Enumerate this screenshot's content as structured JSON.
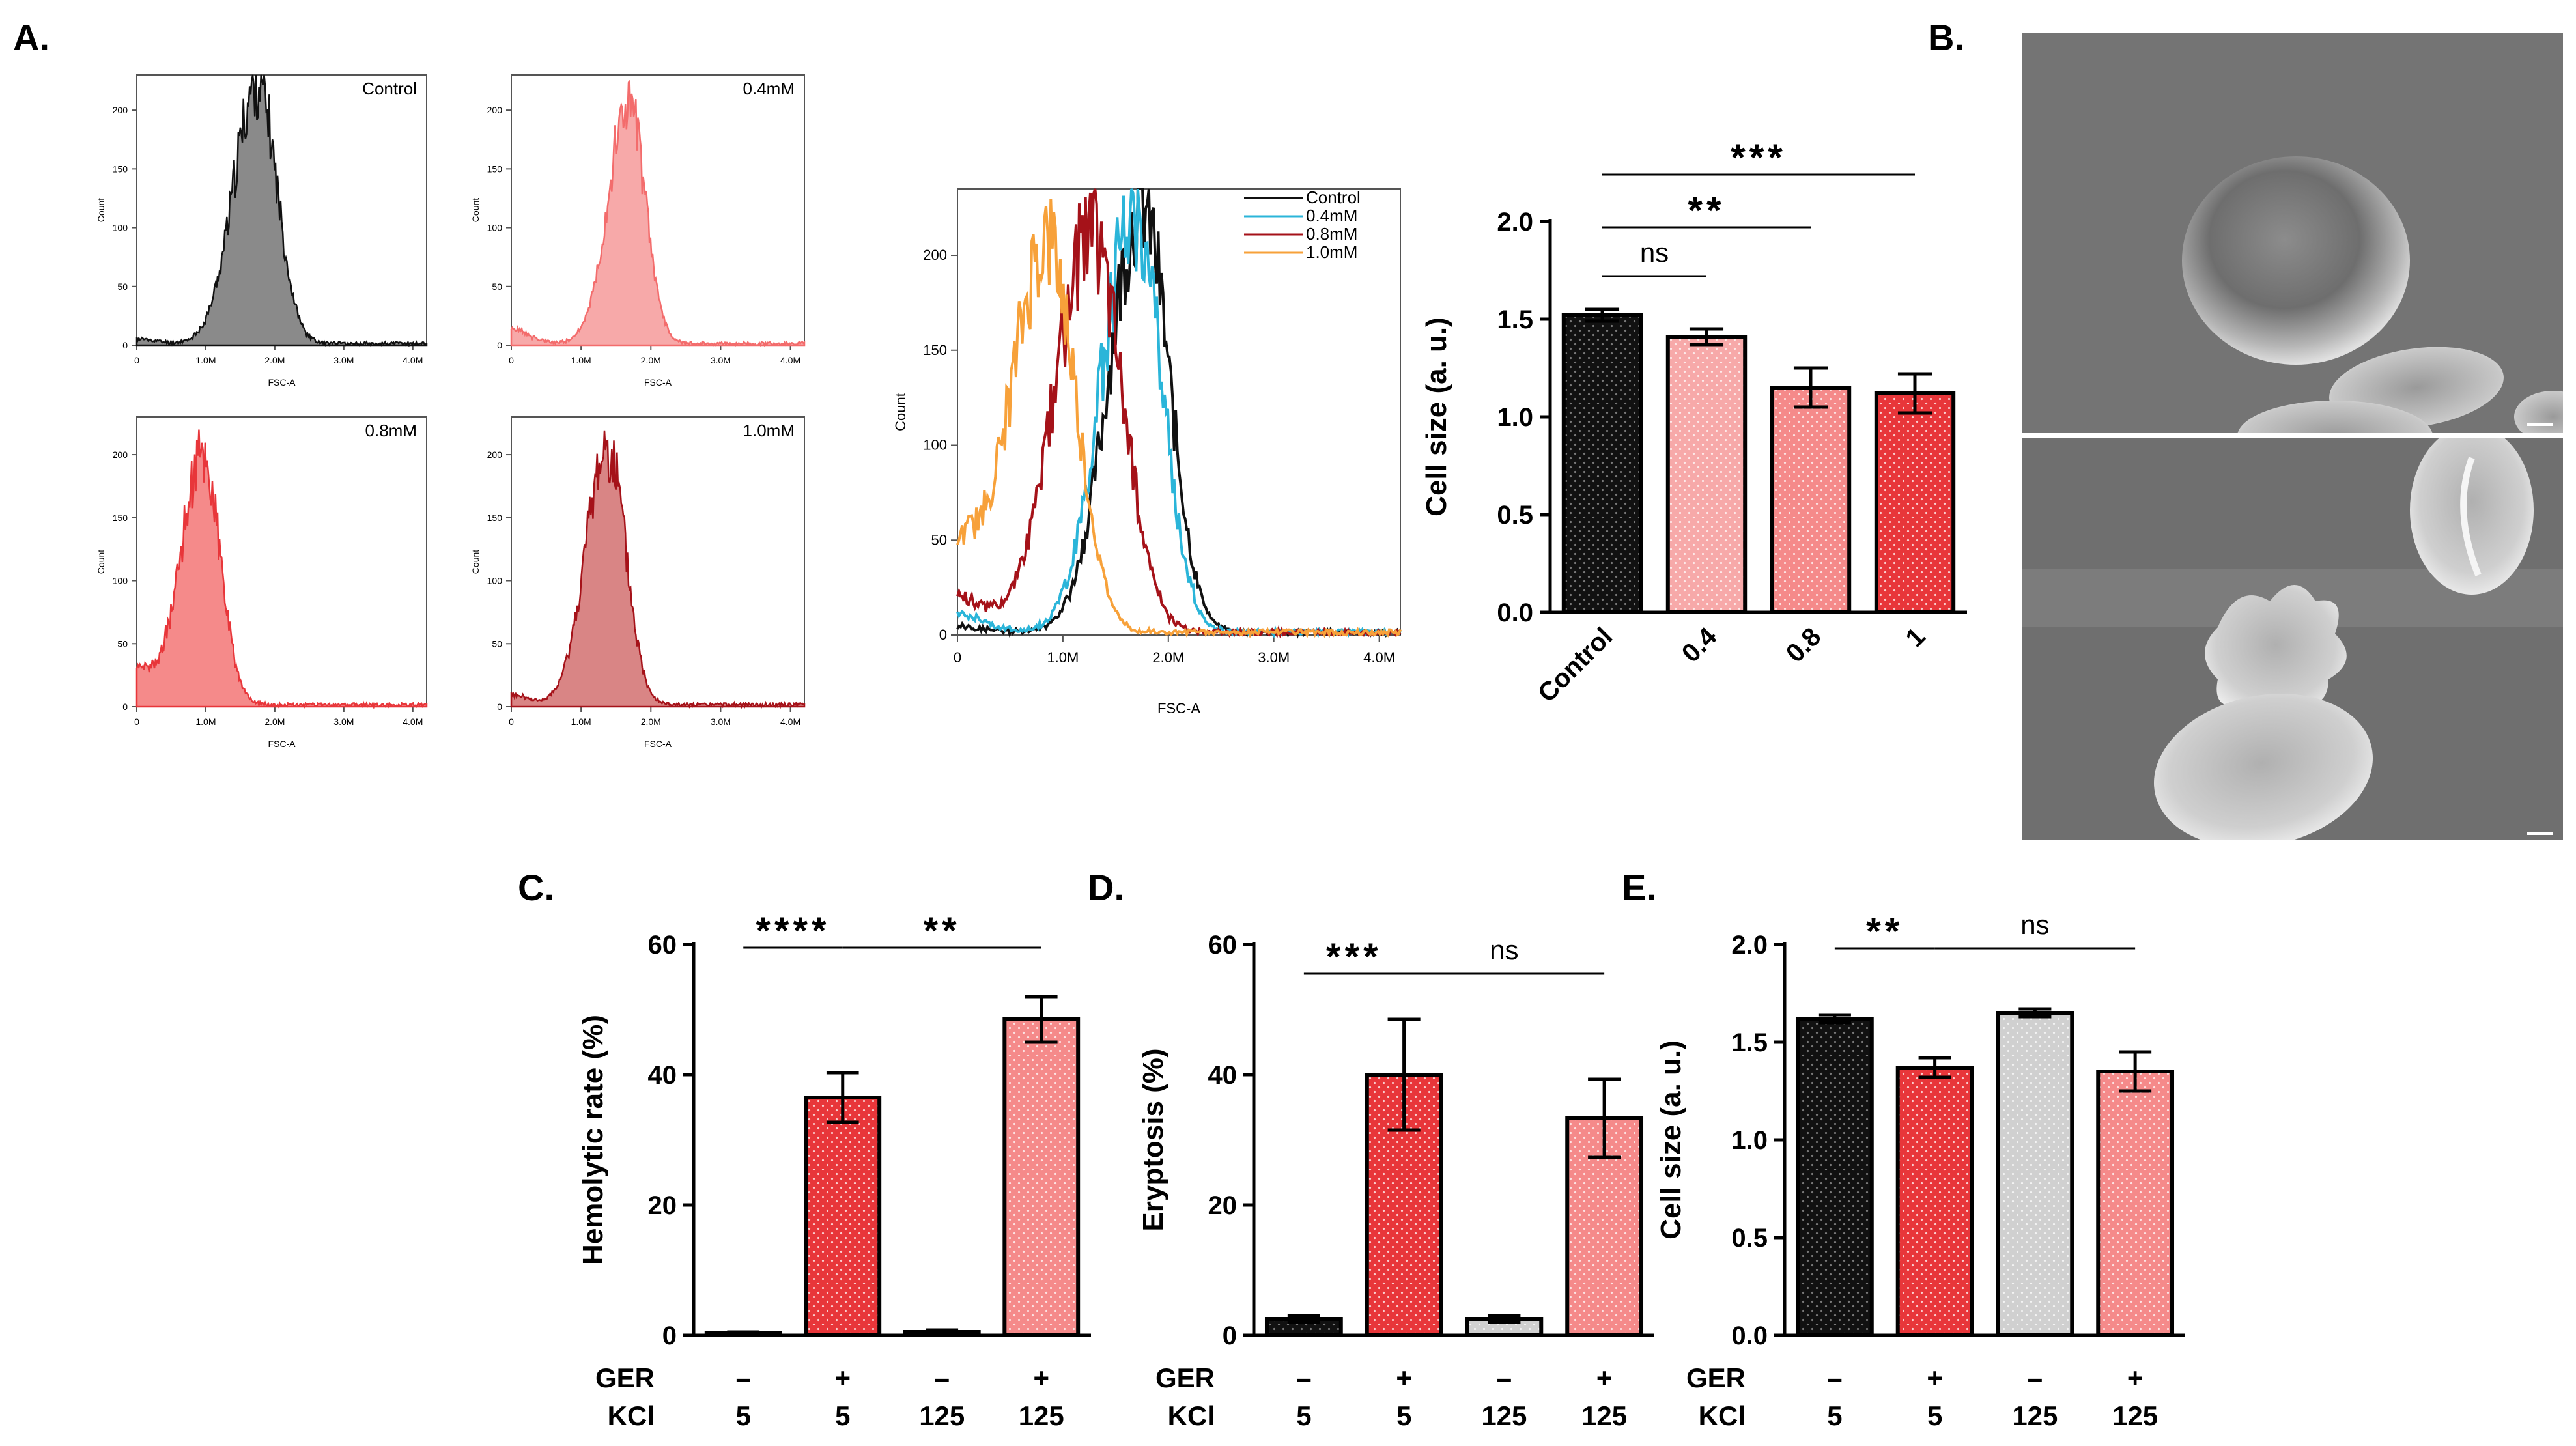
{
  "panel_labels": {
    "a": "A.",
    "b": "B.",
    "c": "C.",
    "d": "D.",
    "e": "E."
  },
  "colors": {
    "black": "#111111",
    "grey": "#8a8a8a",
    "light_pink": "#f7a9a9",
    "pink": "#f58a8a",
    "salmon": "#f36c6c",
    "red": "#e8363a",
    "dark_red": "#a51219",
    "cyan": "#2bb5d9",
    "orange": "#f7a13a",
    "rose_fill": "#d98585",
    "light_grey": "#d0d0d0"
  },
  "chart_data": [
    {
      "id": "hist1",
      "type": "area",
      "inset_label": "Control",
      "xlabel": "FSC-A",
      "ylabel": "Count",
      "xlim": [
        0,
        4.2
      ],
      "ylim": [
        0,
        230
      ],
      "xticks": [
        "0",
        "1.0M",
        "2.0M",
        "3.0M",
        "4.0M"
      ],
      "yticks": [
        "0",
        "50",
        "100",
        "150",
        "200"
      ],
      "color": "#111111",
      "fill": "#8a8a8a",
      "peak_x": 1.75,
      "peak_y": 222,
      "width": 0.33,
      "tail": 4
    },
    {
      "id": "hist2",
      "type": "area",
      "inset_label": "0.4mM",
      "xlabel": "FSC-A",
      "ylabel": "Count",
      "xlim": [
        0,
        4.2
      ],
      "ylim": [
        0,
        230
      ],
      "xticks": [
        "0",
        "1.0M",
        "2.0M",
        "3.0M",
        "4.0M"
      ],
      "yticks": [
        "0",
        "50",
        "100",
        "150",
        "200"
      ],
      "color": "#f36c6c",
      "fill": "#f7a9a9",
      "peak_x": 1.68,
      "peak_y": 205,
      "width": 0.28,
      "tail": 12
    },
    {
      "id": "hist3",
      "type": "area",
      "inset_label": "0.8mM",
      "xlabel": "FSC-A",
      "ylabel": "Count",
      "xlim": [
        0,
        4.2
      ],
      "ylim": [
        0,
        230
      ],
      "xticks": [
        "0",
        "1.0M",
        "2.0M",
        "3.0M",
        "4.0M"
      ],
      "yticks": [
        "0",
        "50",
        "100",
        "150",
        "200"
      ],
      "color": "#e8363a",
      "fill": "#f58a8a",
      "peak_x": 0.95,
      "peak_y": 200,
      "width": 0.3,
      "tail": 25
    },
    {
      "id": "hist4",
      "type": "area",
      "inset_label": "1.0mM",
      "xlabel": "FSC-A",
      "ylabel": "Count",
      "xlim": [
        0,
        4.2
      ],
      "ylim": [
        0,
        230
      ],
      "xticks": [
        "0",
        "1.0M",
        "2.0M",
        "3.0M",
        "4.0M"
      ],
      "yticks": [
        "0",
        "50",
        "100",
        "150",
        "200"
      ],
      "color": "#a51219",
      "fill": "#d98585",
      "peak_x": 1.38,
      "peak_y": 205,
      "width": 0.3,
      "tail": 8
    },
    {
      "id": "overlay",
      "type": "line",
      "xlabel": "FSC-A",
      "ylabel": "Count",
      "xlim": [
        0,
        4.2
      ],
      "ylim": [
        0,
        235
      ],
      "xticks": [
        "0",
        "1.0M",
        "2.0M",
        "3.0M",
        "4.0M"
      ],
      "yticks": [
        "0",
        "50",
        "100",
        "150",
        "200"
      ],
      "series": [
        {
          "name": "Control",
          "color": "#111111",
          "peak_x": 1.75,
          "peak_y": 225,
          "width": 0.3,
          "tail": 3
        },
        {
          "name": "0.4mM",
          "color": "#2bb5d9",
          "peak_x": 1.68,
          "peak_y": 222,
          "width": 0.3,
          "tail": 10
        },
        {
          "name": "0.8mM",
          "color": "#a51219",
          "peak_x": 1.28,
          "peak_y": 210,
          "width": 0.34,
          "tail": 18
        },
        {
          "name": "1.0mM",
          "color": "#f7a13a",
          "peak_x": 0.85,
          "peak_y": 205,
          "width": 0.32,
          "tail": 40
        }
      ],
      "legend": "top-right"
    },
    {
      "id": "sizebar",
      "type": "bar",
      "ylabel": "Cell size (a. u.)",
      "ylim": [
        0,
        2.0
      ],
      "yticks": [
        "0.0",
        "0.5",
        "1.0",
        "1.5",
        "2.0"
      ],
      "categories": [
        "Control",
        "0.4",
        "0.8",
        "1"
      ],
      "values": [
        1.52,
        1.41,
        1.15,
        1.12
      ],
      "errors": [
        0.03,
        0.04,
        0.1,
        0.1
      ],
      "colors": [
        "#111111",
        "#f7a9a9",
        "#f58a8a",
        "#e8363a"
      ],
      "significance": [
        {
          "from": 0,
          "to": 1,
          "label": "ns",
          "y": 1.72
        },
        {
          "from": 0,
          "to": 2,
          "label": "**",
          "y": 1.97
        },
        {
          "from": 0,
          "to": 3,
          "label": "***",
          "y": 2.24
        }
      ]
    },
    {
      "id": "hemolytic",
      "type": "bar",
      "ylabel": "Hemolytic rate (%)",
      "ylim": [
        0,
        60
      ],
      "yticks": [
        "0",
        "20",
        "40",
        "60"
      ],
      "row_labels": [
        "GER",
        "KCl"
      ],
      "categories": [
        [
          "–",
          "5"
        ],
        [
          "+",
          "5"
        ],
        [
          "–",
          "125"
        ],
        [
          "+",
          "125"
        ]
      ],
      "values": [
        0.3,
        36.5,
        0.5,
        48.5
      ],
      "errors": [
        0.2,
        3.8,
        0.3,
        3.5
      ],
      "colors": [
        "#111111",
        "#e8363a",
        "#d0d0d0",
        "#f58a8a"
      ],
      "significance": [
        {
          "from": 0,
          "to": 1,
          "label": "****",
          "y": 59.5
        },
        {
          "from": 1,
          "to": 3,
          "label": "**",
          "y": 59.5
        }
      ]
    },
    {
      "id": "eryptosis",
      "type": "bar",
      "ylabel": "Eryptosis (%)",
      "ylim": [
        0,
        60
      ],
      "yticks": [
        "0",
        "20",
        "40",
        "60"
      ],
      "row_labels": [
        "GER",
        "KCl"
      ],
      "categories": [
        [
          "–",
          "5"
        ],
        [
          "+",
          "5"
        ],
        [
          "–",
          "125"
        ],
        [
          "+",
          "125"
        ]
      ],
      "values": [
        2.5,
        40.0,
        2.5,
        33.3
      ],
      "errors": [
        0.5,
        8.5,
        0.5,
        6.0
      ],
      "colors": [
        "#111111",
        "#e8363a",
        "#d0d0d0",
        "#f58a8a"
      ],
      "significance": [
        {
          "from": 0,
          "to": 1,
          "label": "***",
          "y": 55.5
        },
        {
          "from": 1,
          "to": 3,
          "label": "ns",
          "y": 55.5
        }
      ]
    },
    {
      "id": "cellsize2",
      "type": "bar",
      "ylabel": "Cell size (a. u.)",
      "ylim": [
        0,
        2.0
      ],
      "yticks": [
        "0.0",
        "0.5",
        "1.0",
        "1.5",
        "2.0"
      ],
      "row_labels": [
        "GER",
        "KCl"
      ],
      "categories": [
        [
          "–",
          "5"
        ],
        [
          "+",
          "5"
        ],
        [
          "–",
          "125"
        ],
        [
          "+",
          "125"
        ]
      ],
      "values": [
        1.62,
        1.37,
        1.65,
        1.35
      ],
      "errors": [
        0.02,
        0.05,
        0.02,
        0.1
      ],
      "colors": [
        "#111111",
        "#e8363a",
        "#d0d0d0",
        "#f58a8a"
      ],
      "significance": [
        {
          "from": 0,
          "to": 1,
          "label": "**",
          "y": 1.98
        },
        {
          "from": 1,
          "to": 3,
          "label": "ns",
          "y": 1.98
        }
      ]
    }
  ]
}
